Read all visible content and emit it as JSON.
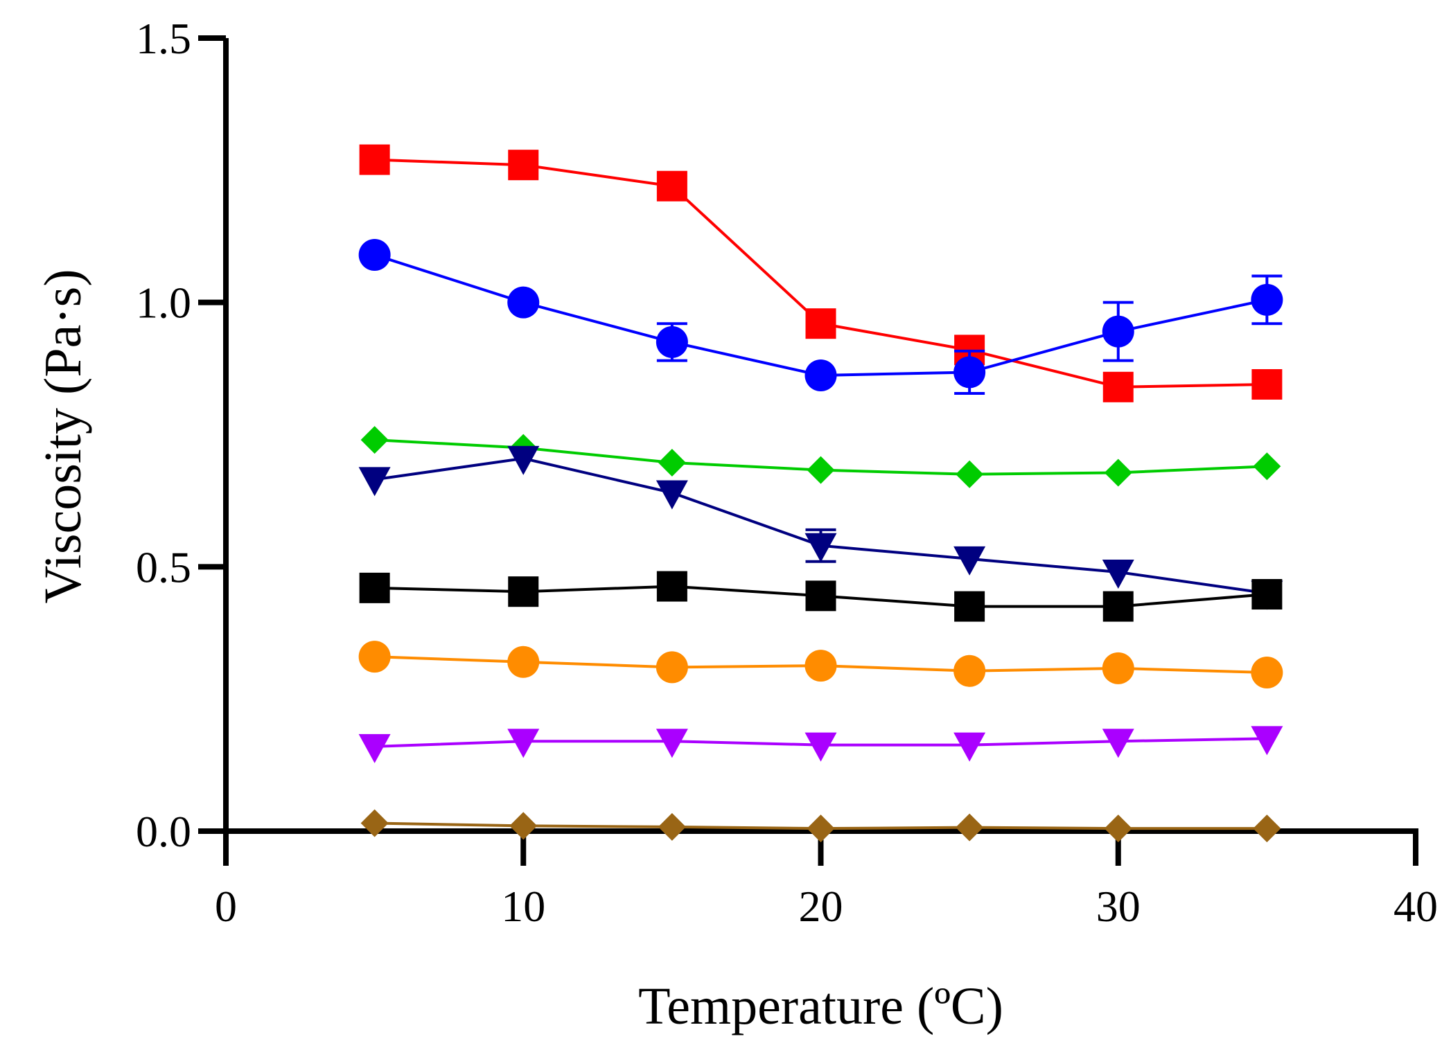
{
  "chart_data": {
    "type": "line",
    "title": "",
    "xlabel": "Temperature (ºC)",
    "ylabel": "Viscosity (Pa·s)",
    "xlim": [
      0,
      40
    ],
    "ylim": [
      0,
      1.5
    ],
    "xticks": [
      0,
      10,
      20,
      30,
      40
    ],
    "xtick_labels": [
      "0",
      "10",
      "20",
      "30",
      "40"
    ],
    "yticks": [
      0,
      0.5,
      1.0,
      1.5
    ],
    "ytick_labels": [
      "0.0",
      "0.5",
      "1.0",
      "1.5"
    ],
    "grid": false,
    "legend": "none",
    "x": [
      5,
      10,
      15,
      20,
      25,
      30,
      35
    ],
    "series": [
      {
        "name": "red-square",
        "color": "#ff0000",
        "marker": "square",
        "values": [
          1.27,
          1.26,
          1.22,
          0.96,
          0.91,
          0.84,
          0.845
        ]
      },
      {
        "name": "blue-circle",
        "color": "#0000ff",
        "marker": "circle",
        "values": [
          1.09,
          1.0,
          0.925,
          0.862,
          0.868,
          0.945,
          1.005
        ],
        "errors": [
          0,
          0,
          0.035,
          0,
          0.04,
          0.055,
          0.045
        ]
      },
      {
        "name": "green-diamond",
        "color": "#00cc00",
        "marker": "diamond",
        "values": [
          0.74,
          0.725,
          0.697,
          0.683,
          0.675,
          0.678,
          0.69
        ]
      },
      {
        "name": "navy-triangle",
        "color": "#000080",
        "marker": "triangle-down",
        "values": [
          0.665,
          0.705,
          0.64,
          0.54,
          0.515,
          0.49,
          0.45
        ],
        "errors": [
          0,
          0,
          0,
          0.03,
          0,
          0,
          0
        ]
      },
      {
        "name": "black-square",
        "color": "#000000",
        "marker": "square",
        "values": [
          0.46,
          0.453,
          0.463,
          0.445,
          0.425,
          0.425,
          0.448
        ]
      },
      {
        "name": "orange-circle",
        "color": "#ff8c00",
        "marker": "circle",
        "values": [
          0.33,
          0.32,
          0.31,
          0.313,
          0.303,
          0.308,
          0.3
        ]
      },
      {
        "name": "violet-triangle",
        "color": "#aa00ff",
        "marker": "triangle-down",
        "values": [
          0.16,
          0.17,
          0.17,
          0.163,
          0.163,
          0.17,
          0.175
        ]
      },
      {
        "name": "brown-diamond",
        "color": "#996515",
        "marker": "diamond",
        "values": [
          0.015,
          0.01,
          0.008,
          0.005,
          0.007,
          0.005,
          0.005
        ]
      }
    ]
  }
}
